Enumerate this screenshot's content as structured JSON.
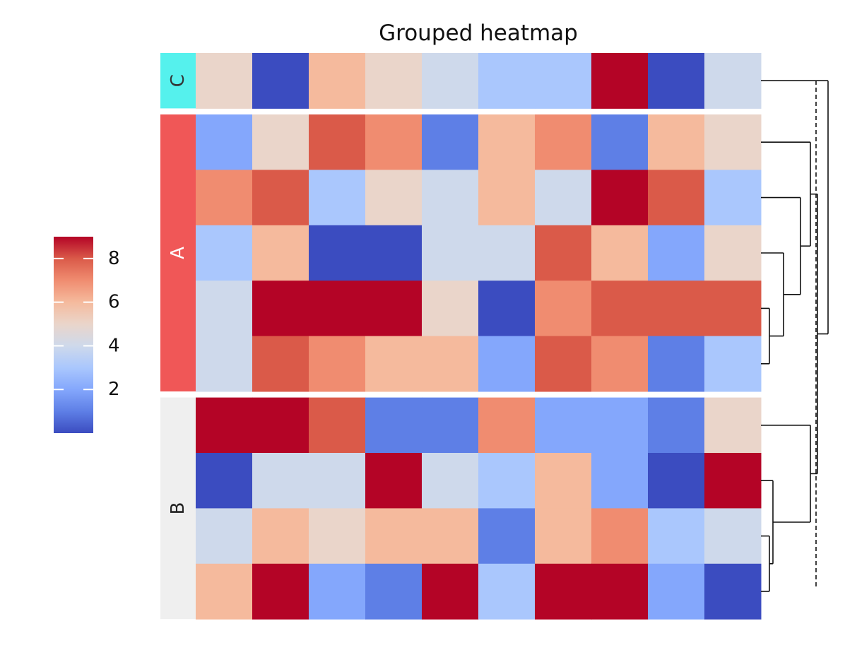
{
  "chart_data": {
    "type": "heatmap",
    "title": "Grouped heatmap",
    "xlabel": "",
    "ylabel": "",
    "colormap": "coolwarm",
    "colorbar": {
      "range": [
        0,
        9
      ],
      "ticks": [
        2,
        4,
        6,
        8
      ],
      "tick_labels": [
        "2",
        "4",
        "6",
        "8"
      ]
    },
    "groups": [
      {
        "label": "C",
        "color": "#55F1ED",
        "text_color": "#333333",
        "rows": 1
      },
      {
        "label": "A",
        "color": "#F05757",
        "text_color": "#ffffff",
        "rows": 5
      },
      {
        "label": "B",
        "color": "#EFEFEF",
        "text_color": "#222222",
        "rows": 4
      }
    ],
    "values": [
      [
        5,
        0,
        6,
        5,
        4,
        3,
        3,
        9,
        0,
        4
      ],
      [
        2,
        5,
        8,
        7,
        1,
        6,
        7,
        1,
        6,
        5
      ],
      [
        7,
        8,
        3,
        5,
        4,
        6,
        4,
        9,
        8,
        3
      ],
      [
        3,
        6,
        0,
        0,
        4,
        4,
        8,
        6,
        2,
        5
      ],
      [
        4,
        9,
        9,
        9,
        5,
        0,
        7,
        8,
        8,
        8
      ],
      [
        4,
        8,
        7,
        6,
        6,
        2,
        8,
        7,
        1,
        3
      ],
      [
        9,
        9,
        8,
        1,
        1,
        7,
        2,
        2,
        1,
        5
      ],
      [
        0,
        4,
        4,
        9,
        4,
        3,
        6,
        2,
        0,
        9
      ],
      [
        4,
        6,
        5,
        6,
        6,
        1,
        6,
        7,
        3,
        4
      ],
      [
        6,
        9,
        2,
        1,
        9,
        3,
        9,
        9,
        2,
        0
      ]
    ],
    "dendrogram": "rows",
    "grid": false,
    "legend_position": "left"
  }
}
